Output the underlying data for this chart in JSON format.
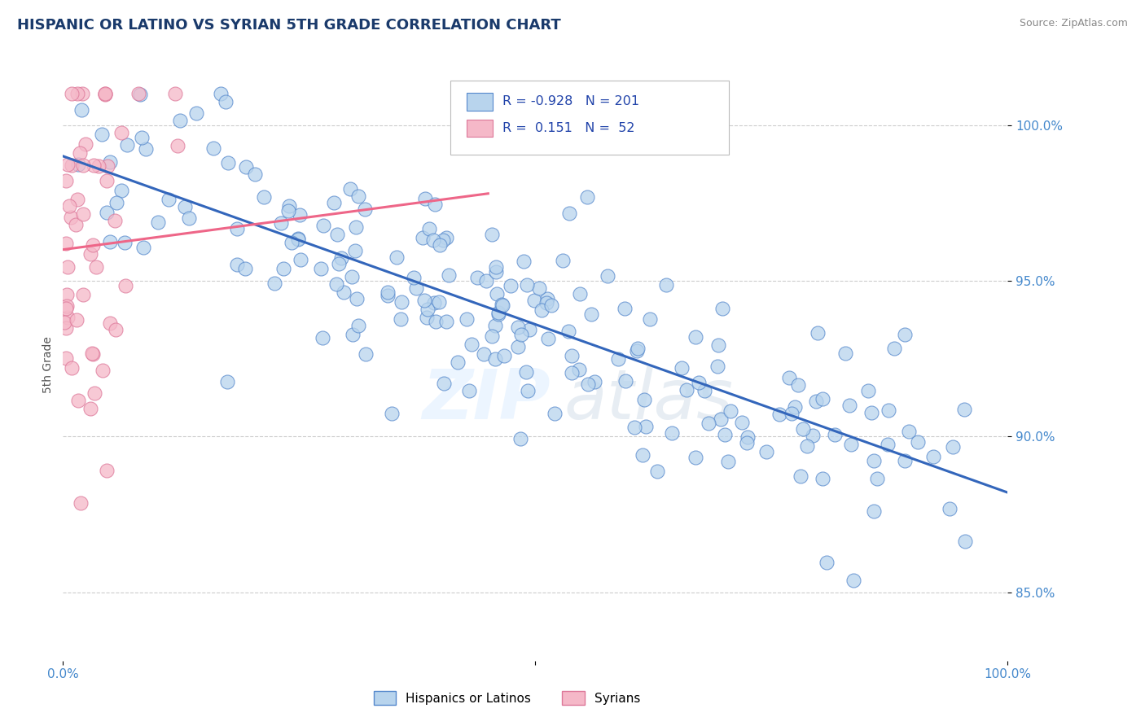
{
  "title": "HISPANIC OR LATINO VS SYRIAN 5TH GRADE CORRELATION CHART",
  "source_text": "Source: ZipAtlas.com",
  "ylabel": "5th Grade",
  "x_min": 0.0,
  "x_max": 1.0,
  "y_min": 0.828,
  "y_max": 1.018,
  "y_ticks": [
    0.85,
    0.9,
    0.95,
    1.0
  ],
  "y_tick_labels": [
    "85.0%",
    "90.0%",
    "95.0%",
    "100.0%"
  ],
  "x_ticks": [
    0.0,
    0.5,
    1.0
  ],
  "x_tick_labels": [
    "0.0%",
    "",
    "100.0%"
  ],
  "blue_R": -0.928,
  "blue_N": 201,
  "pink_R": 0.151,
  "pink_N": 52,
  "blue_color": "#b8d4ed",
  "blue_edge_color": "#5588cc",
  "blue_line_color": "#3366bb",
  "pink_color": "#f5b8c8",
  "pink_edge_color": "#dd7799",
  "pink_line_color": "#ee6688",
  "legend_blue_label": "Hispanics or Latinos",
  "legend_pink_label": "Syrians",
  "watermark_zip": "ZIP",
  "watermark_atlas": "atlas",
  "background_color": "#ffffff",
  "title_color": "#1a3a6b",
  "axis_label_color": "#555555",
  "tick_label_color": "#4488cc",
  "grid_color": "#cccccc",
  "title_fontsize": 13,
  "source_fontsize": 9,
  "blue_line_x0": 0.0,
  "blue_line_x1": 1.0,
  "blue_line_y0": 0.99,
  "blue_line_y1": 0.882,
  "pink_line_x0": 0.0,
  "pink_line_x1": 0.45,
  "pink_line_y0": 0.96,
  "pink_line_y1": 0.978
}
